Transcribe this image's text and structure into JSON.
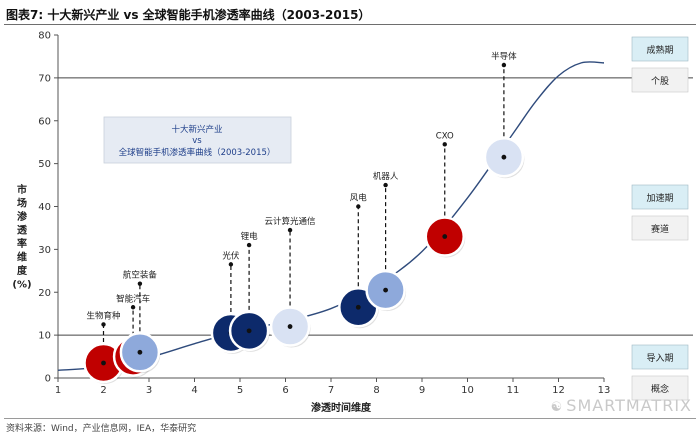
{
  "title": "图表7:    十大新兴产业 vs 全球智能手机渗透率曲线（2003-2015）",
  "source": "资料来源：Wind，产业信息网，IEA，华泰研究",
  "watermark": "SMARTMATRIX",
  "chart_data": {
    "type": "scatter",
    "xlabel": "渗透时间维度",
    "ylabel": [
      "市",
      "场",
      "渗",
      "透",
      "率",
      "维",
      "度",
      "(%)"
    ],
    "xlim": [
      1,
      13
    ],
    "ylim": [
      0,
      80
    ],
    "xticks": [
      1,
      2,
      3,
      4,
      5,
      6,
      7,
      8,
      9,
      10,
      11,
      12,
      13
    ],
    "yticks": [
      0,
      10,
      20,
      30,
      40,
      50,
      60,
      70,
      80
    ],
    "reference_lines": [
      10,
      70
    ],
    "grid": false,
    "curve": [
      [
        1,
        1.8
      ],
      [
        2,
        2.6
      ],
      [
        3,
        4.8
      ],
      [
        4,
        8.0
      ],
      [
        5,
        11.0
      ],
      [
        6,
        13.2
      ],
      [
        7,
        16.2
      ],
      [
        8,
        21.5
      ],
      [
        9,
        29.5
      ],
      [
        10,
        42.0
      ],
      [
        11,
        57.0
      ],
      [
        11.5,
        64.5
      ],
      [
        12,
        70.5
      ],
      [
        12.5,
        73.5
      ],
      [
        13,
        73.5
      ]
    ],
    "points": [
      {
        "label": "生物育种",
        "x": 2.0,
        "y": 3.5,
        "label_y": 12.5,
        "color": "#c00000"
      },
      {
        "label": "智能汽车",
        "x": 2.65,
        "y": 5.0,
        "label_y": 16.5,
        "color": "#c00000"
      },
      {
        "label": "航空装备",
        "x": 2.8,
        "y": 6.0,
        "label_y": 22.0,
        "color": "#8ea9db"
      },
      {
        "label": "光伏",
        "x": 4.8,
        "y": 10.5,
        "label_y": 26.5,
        "color": "#0d2a6b"
      },
      {
        "label": "锂电",
        "x": 5.2,
        "y": 11.0,
        "label_y": 31.0,
        "color": "#0d2a6b"
      },
      {
        "label": "云计算光通信",
        "x": 6.1,
        "y": 12.0,
        "label_y": 34.5,
        "color": "#d9e2f3"
      },
      {
        "label": "风电",
        "x": 7.6,
        "y": 16.5,
        "label_y": 40.0,
        "color": "#0d2a6b"
      },
      {
        "label": "机器人",
        "x": 8.2,
        "y": 20.5,
        "label_y": 45.0,
        "color": "#8ea9db"
      },
      {
        "label": "CXO",
        "x": 9.5,
        "y": 33.0,
        "label_y": 54.5,
        "color": "#c00000"
      },
      {
        "label": "半导体",
        "x": 10.8,
        "y": 51.5,
        "label_y": 73.0,
        "color": "#d9e2f3"
      }
    ],
    "annotation_box": {
      "line1": "十大新兴产业",
      "line2": "vs",
      "line3": "全球智能手机渗透率曲线（2003-2015）"
    },
    "stages": [
      {
        "title": "成熟期",
        "subtitle": "个股"
      },
      {
        "title": "加速期",
        "subtitle": "赛道"
      },
      {
        "title": "导入期",
        "subtitle": "概念"
      }
    ]
  },
  "colors": {
    "curve": "#2f4b7c",
    "axis": "#555555",
    "stage_title_bg": "#d9eef5",
    "stage_sub_bg": "#f2f2f2"
  }
}
